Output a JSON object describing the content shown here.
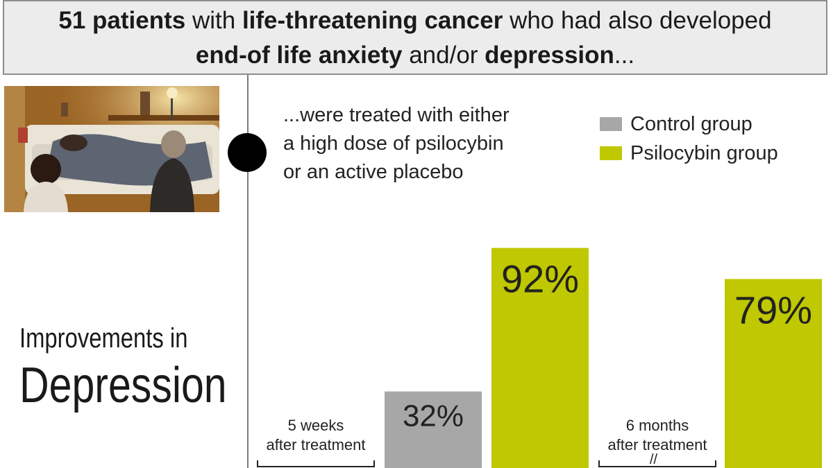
{
  "header": {
    "line1": [
      {
        "text": "51 patients",
        "bold": true
      },
      {
        "text": " with ",
        "bold": false
      },
      {
        "text": "life-threatening cancer",
        "bold": true
      },
      {
        "text": " who had also developed",
        "bold": false
      }
    ],
    "line2": [
      {
        "text": "end-of life anxiety",
        "bold": true
      },
      {
        "text": " and/or ",
        "bold": false
      },
      {
        "text": "depression",
        "bold": true
      },
      {
        "text": "...",
        "bold": false
      }
    ]
  },
  "description": {
    "line1": "...were treated with either",
    "line2": "a high dose of psilocybin",
    "line3": "or an active placebo"
  },
  "title": {
    "line1": "Improvements in",
    "line2": "Depression"
  },
  "chart_data": {
    "type": "bar",
    "categories": [
      "5 weeks after treatment",
      "6 months after treatment"
    ],
    "category_lines": [
      [
        "5 weeks",
        "after treatment"
      ],
      [
        "6 months",
        "after treatment"
      ]
    ],
    "series": [
      {
        "name": "Control group",
        "color": "#a7a7a7",
        "values": [
          32,
          null
        ],
        "labels": [
          "32%",
          null
        ]
      },
      {
        "name": "Psilocybin group",
        "color": "#bfc800",
        "values": [
          92,
          79
        ],
        "labels": [
          "92%",
          "79%"
        ]
      }
    ],
    "unit": "%",
    "ylim": [
      0,
      100
    ],
    "legend": "top-right",
    "grid": false,
    "axis_break": "//"
  }
}
